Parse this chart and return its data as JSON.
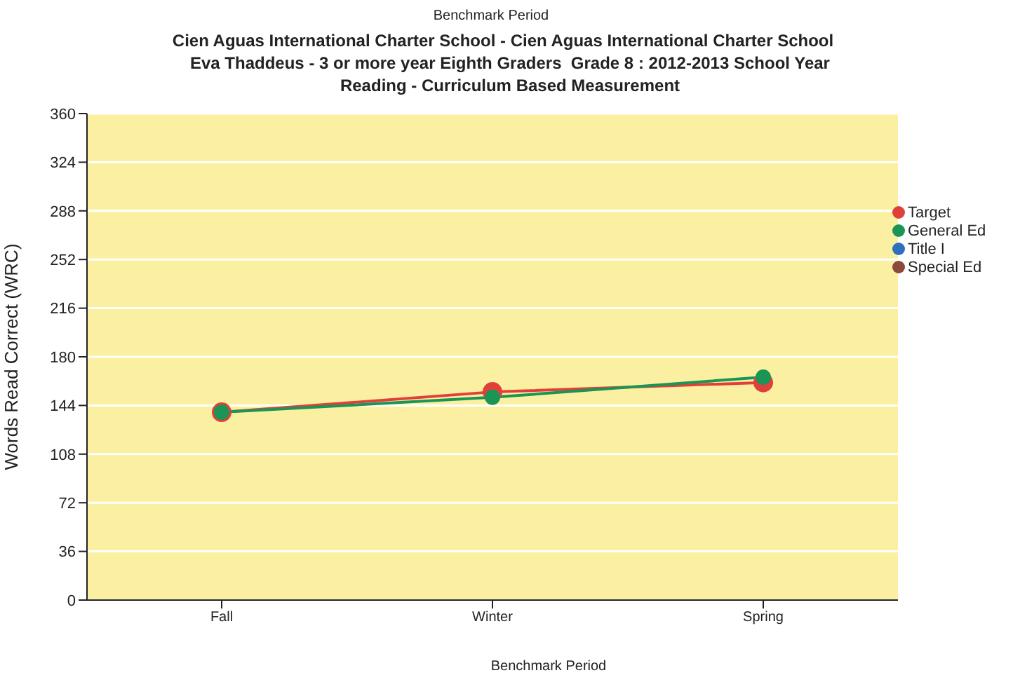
{
  "chart_data": {
    "type": "line",
    "title": "Cien Aguas International Charter School - Cien Aguas International Charter School",
    "subtitle": "Eva Thaddeus - 3 or more year Eighth Graders  Grade 8 : 2012-2013 School Year\nReading - Curriculum Based Measurement",
    "annotations": [
      "Benchmark Period"
    ],
    "xlabel": "Benchmark Period",
    "ylabel": "Words Read Correct (WRC)",
    "categories": [
      "Fall",
      "Winter",
      "Spring"
    ],
    "series": [
      {
        "name": "Target",
        "color": "#e0403a",
        "values": [
          139,
          154,
          161
        ]
      },
      {
        "name": "General Ed",
        "color": "#1a9555",
        "values": [
          139,
          150,
          165
        ]
      },
      {
        "name": "Title I",
        "color": "#2f6fc0",
        "values": [
          null,
          null,
          null
        ]
      },
      {
        "name": "Special Ed",
        "color": "#8b4a3a",
        "values": [
          null,
          null,
          null
        ]
      }
    ],
    "ylim": [
      0,
      360
    ],
    "yticks": [
      0,
      36,
      72,
      108,
      144,
      180,
      216,
      252,
      288,
      324,
      360
    ],
    "grid": "y",
    "legend": "right",
    "marker": "circle",
    "line_style": "solid"
  }
}
